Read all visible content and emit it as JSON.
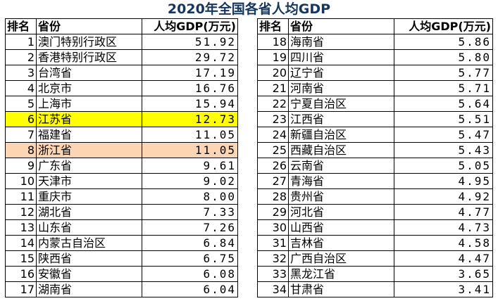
{
  "title": "2020年全国各省人均GDP",
  "headers": {
    "rank": "排名",
    "province": "省份",
    "gdp": "人均GDP(万元)"
  },
  "highlight_colors": {
    "jiangsu": "#ffff00",
    "zhejiang": "#fcd5b4"
  },
  "left_rows": [
    {
      "rank": "1",
      "province": "澳门特别行政区",
      "gdp": "51.92"
    },
    {
      "rank": "2",
      "province": "香港特别行政区",
      "gdp": "29.72"
    },
    {
      "rank": "3",
      "province": "台湾省",
      "gdp": "17.19"
    },
    {
      "rank": "4",
      "province": "北京市",
      "gdp": "16.76"
    },
    {
      "rank": "5",
      "province": "上海市",
      "gdp": "15.94"
    },
    {
      "rank": "6",
      "province": "江苏省",
      "gdp": "12.73"
    },
    {
      "rank": "7",
      "province": "福建省",
      "gdp": "11.05"
    },
    {
      "rank": "8",
      "province": "浙江省",
      "gdp": "11.05"
    },
    {
      "rank": "9",
      "province": "广东省",
      "gdp": "9.61"
    },
    {
      "rank": "10",
      "province": "天津市",
      "gdp": "9.02"
    },
    {
      "rank": "11",
      "province": "重庆市",
      "gdp": "8.00"
    },
    {
      "rank": "12",
      "province": "湖北省",
      "gdp": "7.33"
    },
    {
      "rank": "13",
      "province": "山东省",
      "gdp": "7.26"
    },
    {
      "rank": "14",
      "province": "内蒙古自治区",
      "gdp": "6.84"
    },
    {
      "rank": "15",
      "province": "陕西省",
      "gdp": "6.75"
    },
    {
      "rank": "16",
      "province": "安徽省",
      "gdp": "6.08"
    },
    {
      "rank": "17",
      "province": "湖南省",
      "gdp": "6.04"
    }
  ],
  "right_rows": [
    {
      "rank": "18",
      "province": "海南省",
      "gdp": "5.86"
    },
    {
      "rank": "19",
      "province": "四川省",
      "gdp": "5.80"
    },
    {
      "rank": "20",
      "province": "辽宁省",
      "gdp": "5.77"
    },
    {
      "rank": "21",
      "province": "河南省",
      "gdp": "5.71"
    },
    {
      "rank": "22",
      "province": "宁夏自治区",
      "gdp": "5.64"
    },
    {
      "rank": "23",
      "province": "江西省",
      "gdp": "5.51"
    },
    {
      "rank": "24",
      "province": "新疆自治区",
      "gdp": "5.47"
    },
    {
      "rank": "25",
      "province": "西藏自治区",
      "gdp": "5.43"
    },
    {
      "rank": "26",
      "province": "云南省",
      "gdp": "5.05"
    },
    {
      "rank": "27",
      "province": "青海省",
      "gdp": "4.95"
    },
    {
      "rank": "28",
      "province": "贵州省",
      "gdp": "4.92"
    },
    {
      "rank": "29",
      "province": "河北省",
      "gdp": "4.77"
    },
    {
      "rank": "30",
      "province": "山西省",
      "gdp": "4.73"
    },
    {
      "rank": "31",
      "province": "吉林省",
      "gdp": "4.58"
    },
    {
      "rank": "32",
      "province": "广西自治区",
      "gdp": "4.47"
    },
    {
      "rank": "33",
      "province": "黑龙江省",
      "gdp": "3.65"
    },
    {
      "rank": "34",
      "province": "甘肃省",
      "gdp": "3.41"
    }
  ]
}
